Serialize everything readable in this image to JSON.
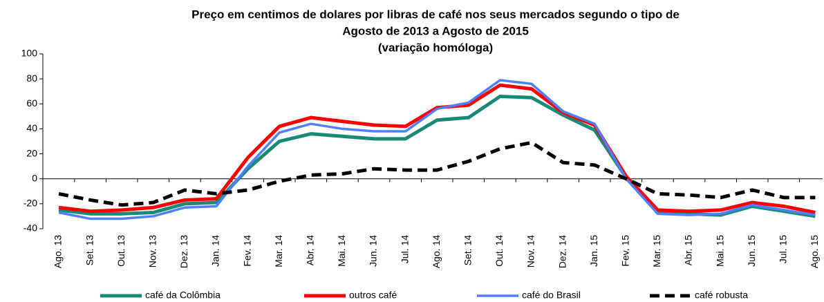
{
  "chart_data": {
    "type": "line",
    "title": [
      "Preço em centimos de dolares por libras de café nos seus mercados segundo o tipo de",
      "Agosto de 2013 a Agosto de 2015",
      "(variação homóloga)"
    ],
    "categories": [
      "Ago. 13",
      "Set. 13",
      "Out. 13",
      "Nov. 13",
      "Dez. 13",
      "Jan. 14",
      "Fev. 14",
      "Mar. 14",
      "Abr. 14",
      "Mai. 14",
      "Jun. 14",
      "Jul. 14",
      "Ago. 14",
      "Set. 14",
      "Out. 14",
      "Nov. 14",
      "Dez. 14",
      "Jan. 15",
      "Fev. 15",
      "Mar. 15",
      "Abr. 15",
      "Mai. 15",
      "Jun. 15",
      "Jul. 15",
      "Ago. 15"
    ],
    "series": [
      {
        "name": "café da Colômbia",
        "color": "#178a78",
        "width": 5,
        "dashed": false,
        "values": [
          -25,
          -28,
          -28,
          -27,
          -20,
          -19,
          8,
          30,
          36,
          34,
          32,
          32,
          47,
          49,
          66,
          65,
          51,
          39,
          1,
          -27,
          -28,
          -29,
          -22,
          -26,
          -30
        ]
      },
      {
        "name": "outros café",
        "color": "#ff0000",
        "width": 5,
        "dashed": false,
        "values": [
          -23,
          -26,
          -25,
          -23,
          -17,
          -16,
          17,
          42,
          49,
          46,
          43,
          42,
          57,
          59,
          75,
          72,
          53,
          43,
          2,
          -25,
          -26,
          -25,
          -19,
          -22,
          -27
        ]
      },
      {
        "name": "café do Brasil",
        "color": "#4f7fff",
        "width": 3.5,
        "dashed": false,
        "values": [
          -27,
          -32,
          -32,
          -30,
          -23,
          -22,
          10,
          37,
          44,
          40,
          38,
          38,
          56,
          61,
          79,
          76,
          54,
          44,
          0,
          -28,
          -29,
          -28,
          -21,
          -25,
          -29
        ]
      },
      {
        "name": "café robusta",
        "color": "#000000",
        "width": 5,
        "dashed": true,
        "values": [
          -12,
          -17,
          -21,
          -19,
          -9,
          -12,
          -9,
          -2,
          3,
          4,
          8,
          7,
          7,
          14,
          24,
          29,
          13,
          11,
          0,
          -12,
          -13,
          -15,
          -9,
          -15,
          -15
        ]
      }
    ],
    "ylim": [
      -40,
      100
    ],
    "yticks": [
      -40,
      -20,
      0,
      20,
      40,
      60,
      80,
      100
    ],
    "grid": false,
    "legend": "bottom"
  }
}
